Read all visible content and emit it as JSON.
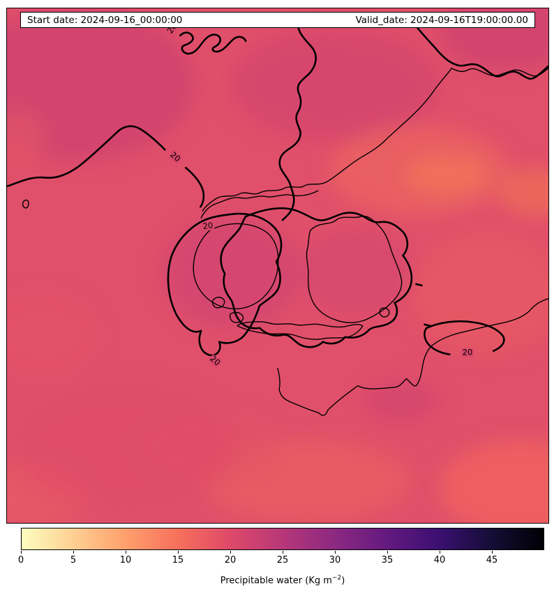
{
  "header": {
    "start_label": "Start date: 2024-09-16_00:00:00",
    "valid_label": "Valid_date: 2024-09-16T19:00:00.00"
  },
  "map": {
    "contour_label": "20",
    "base_color": "#e0506a",
    "line_color": "#000000"
  },
  "colorbar": {
    "ticks": [
      0,
      5,
      10,
      15,
      20,
      25,
      30,
      35,
      40,
      45
    ],
    "range": [
      0,
      50
    ],
    "gradient": [
      "#fcfdbf",
      "#fecf92",
      "#fe9f6d",
      "#f7705c",
      "#de4968",
      "#b73779",
      "#8c2981",
      "#641a80",
      "#3b0f70",
      "#140e36",
      "#000004"
    ],
    "label_prefix": "Precipitable water (Kg m",
    "label_sup": "−2",
    "label_suffix": ")"
  },
  "chart_data": {
    "type": "heatmap",
    "title": "",
    "annotations": {
      "start_date": "Start date: 2024-09-16_00:00:00",
      "valid_date": "Valid_date: 2024-09-16T19:00:00.00"
    },
    "field": "Precipitable water",
    "units": "Kg m−2",
    "colorbar": {
      "label": "Precipitable water (Kg m−2)",
      "ticks": [
        0,
        5,
        10,
        15,
        20,
        25,
        30,
        35,
        40,
        45
      ],
      "range": [
        0,
        50
      ],
      "colormap": "reversed magma: light yellow at 0, orange ~10, red-pink ~20, purple ~30, dark navy ~42, black at 50"
    },
    "labeled_contour_level": 20,
    "contour_label_count": 5,
    "approx_field_values_shown": [
      16,
      23
    ],
    "overlays": "thin black coastlines (Denmark / western Baltic region) and thick black contour lines labeled 20",
    "legend_position": "horizontal colorbar below map"
  }
}
